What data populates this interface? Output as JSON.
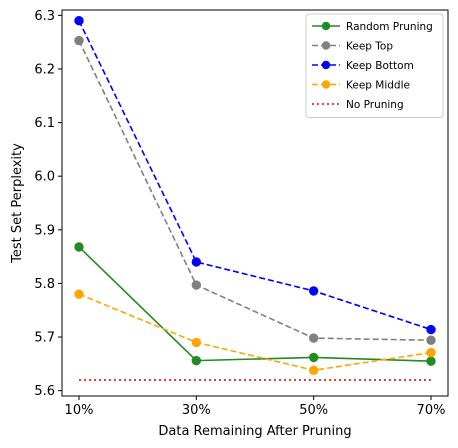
{
  "chart_data": {
    "type": "line",
    "title": "",
    "xlabel": "Data Remaining After Pruning",
    "ylabel": "Test Set Perplexity",
    "categories": [
      "10%",
      "30%",
      "50%",
      "70%"
    ],
    "ylim": [
      5.59,
      6.31
    ],
    "yticks": [
      5.6,
      5.7,
      5.8,
      5.9,
      6.0,
      6.1,
      6.2,
      6.3
    ],
    "grid": false,
    "legend_position": "top-right",
    "series": [
      {
        "name": "Random Pruning",
        "color": "#228b22",
        "dash": "solid",
        "marker": "circle",
        "values": [
          5.868,
          5.656,
          5.662,
          5.655
        ]
      },
      {
        "name": "Keep Top",
        "color": "#808080",
        "dash": "dashed",
        "marker": "circle",
        "values": [
          6.253,
          5.797,
          5.698,
          5.694
        ]
      },
      {
        "name": "Keep Bottom",
        "color": "#0000ff",
        "dash": "dashed",
        "marker": "circle",
        "values": [
          6.29,
          5.84,
          5.786,
          5.714
        ]
      },
      {
        "name": "Keep Middle",
        "color": "#ffa500",
        "dash": "dashed",
        "marker": "circle",
        "values": [
          5.78,
          5.69,
          5.638,
          5.671
        ]
      },
      {
        "name": "No Pruning",
        "color": "#ff0000",
        "dash": "dotted",
        "marker": "none",
        "values": [
          5.62,
          5.62,
          5.62,
          5.62
        ]
      }
    ]
  }
}
